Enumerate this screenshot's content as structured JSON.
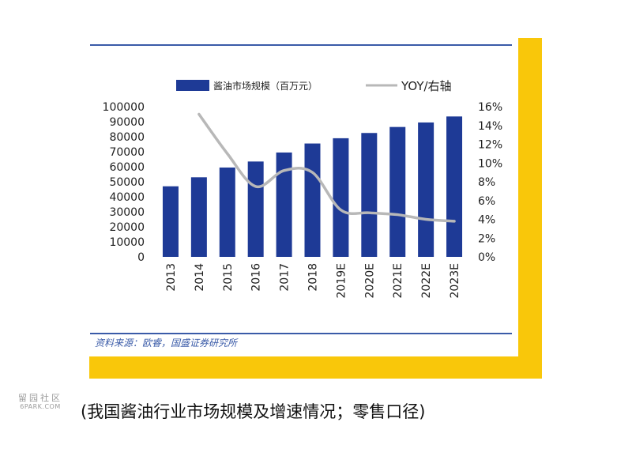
{
  "caption": "(我国酱油行业市场规模及增速情况；零售口径)",
  "source": "资料来源：欧睿，国盛证券研究所",
  "watermark": {
    "line1": "留园社区",
    "line2": "6PARK.COM"
  },
  "colors": {
    "bar": "#1e3a96",
    "line": "#b8b8b8",
    "rule": "#3a5ba8",
    "frame": "#f9c70a"
  },
  "chart_data": {
    "type": "bar",
    "categories": [
      "2013",
      "2014",
      "2015",
      "2016",
      "2017",
      "2018",
      "2019E",
      "2020E",
      "2021E",
      "2022E",
      "2023E"
    ],
    "series": [
      {
        "name": "酱油市场规模（百万元）",
        "type": "bar",
        "axis": "left",
        "values": [
          47000,
          53000,
          59500,
          63500,
          69500,
          75500,
          79000,
          82500,
          86500,
          89500,
          93500
        ]
      },
      {
        "name": "YOY/右轴",
        "type": "line",
        "axis": "right",
        "values": [
          null,
          0.152,
          0.11,
          0.075,
          0.092,
          0.09,
          0.05,
          0.047,
          0.045,
          0.04,
          0.038
        ]
      }
    ],
    "yleft": {
      "lim": [
        0,
        100000
      ],
      "ticks": [
        "100000",
        "90000",
        "80000",
        "70000",
        "60000",
        "50000",
        "40000",
        "30000",
        "20000",
        "10000",
        "0"
      ]
    },
    "yright": {
      "lim": [
        0,
        0.16
      ],
      "ticks": [
        "16%",
        "14%",
        "12%",
        "10%",
        "8%",
        "6%",
        "4%",
        "2%",
        "0%"
      ]
    },
    "legend": {
      "position": "top",
      "bar_label": "酱油市场规模（百万元）",
      "line_label": "YOY/右轴"
    },
    "grid": false
  }
}
